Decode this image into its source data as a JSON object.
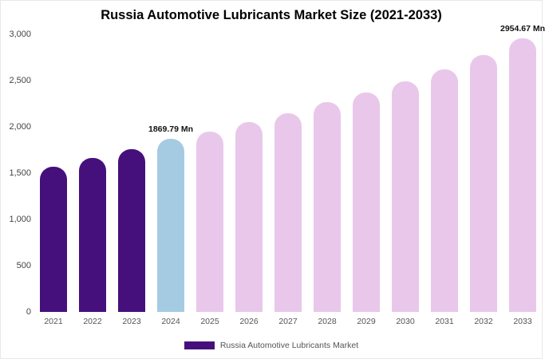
{
  "title": "Russia Automotive Lubricants Market Size (2021-2033)",
  "legend": {
    "label": "Russia Automotive Lubricants Market"
  },
  "colors": {
    "historical": "#46107c",
    "highlight": "#a5cbe2",
    "forecast": "#e9c7eb"
  },
  "chart_data": {
    "type": "bar",
    "title": "Russia Automotive Lubricants Market Size (2021-2033)",
    "xlabel": "",
    "ylabel": "",
    "ylim": [
      0,
      3000
    ],
    "ytick_labels": [
      "3,000",
      "2,500",
      "2,000",
      "1,500",
      "1,000",
      "500",
      "0"
    ],
    "categories": [
      "2021",
      "2022",
      "2023",
      "2024",
      "2025",
      "2026",
      "2027",
      "2028",
      "2029",
      "2030",
      "2031",
      "2032",
      "2033"
    ],
    "values": [
      1570,
      1665,
      1755,
      1869.79,
      1945,
      2050,
      2145,
      2265,
      2375,
      2495,
      2625,
      2780,
      2954.67
    ],
    "color_roles": [
      "historical",
      "historical",
      "historical",
      "highlight",
      "forecast",
      "forecast",
      "forecast",
      "forecast",
      "forecast",
      "forecast",
      "forecast",
      "forecast",
      "forecast"
    ],
    "annotations": [
      {
        "index": 3,
        "text": "1869.79 Mn"
      },
      {
        "index": 12,
        "text": "2954.67 Mn"
      }
    ],
    "grid": false,
    "legend_position": "bottom-center",
    "unit": "Mn"
  }
}
